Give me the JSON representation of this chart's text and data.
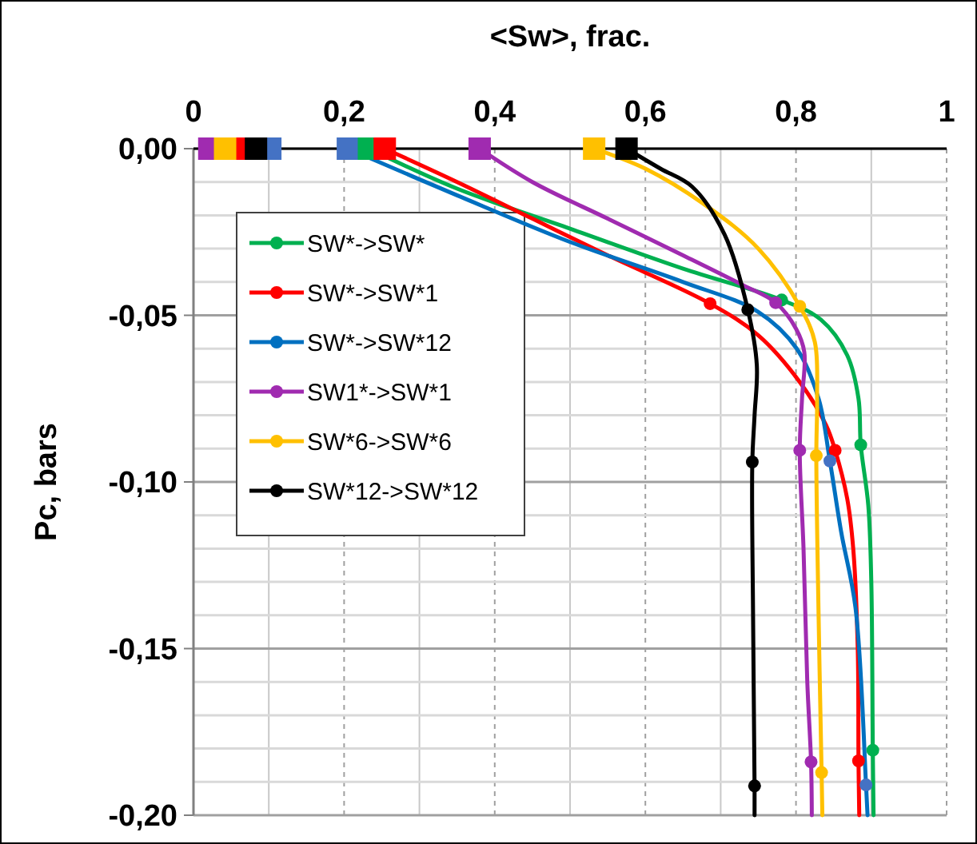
{
  "chart_data": {
    "type": "line",
    "xlabel": "<Sw>, frac.",
    "ylabel": "Pc, bars",
    "xlim": [
      0,
      1
    ],
    "ylim": [
      -0.2,
      0
    ],
    "xticks": [
      0,
      {
        "value": 0.1,
        "label": null
      },
      {
        "value": 0.2,
        "label": "0,2"
      },
      {
        "value": 0.3,
        "label": null
      },
      {
        "value": 0.4,
        "label": "0,4"
      },
      {
        "value": 0.5,
        "label": null
      },
      {
        "value": 0.6,
        "label": "0,6"
      },
      {
        "value": 0.7,
        "label": null
      },
      {
        "value": 0.8,
        "label": "0,8"
      },
      {
        "value": 0.9,
        "label": null
      },
      1
    ],
    "yticks": [
      {
        "value": 0,
        "label": "0,00"
      },
      {
        "value": -0.01,
        "label": null
      },
      {
        "value": -0.02,
        "label": null
      },
      {
        "value": -0.03,
        "label": null
      },
      {
        "value": -0.04,
        "label": null
      },
      {
        "value": -0.05,
        "label": "-0,05"
      },
      {
        "value": -0.06,
        "label": null
      },
      {
        "value": -0.07,
        "label": null
      },
      {
        "value": -0.08,
        "label": null
      },
      {
        "value": -0.09,
        "label": null
      },
      {
        "value": -0.1,
        "label": "-0,10"
      },
      {
        "value": -0.11,
        "label": null
      },
      {
        "value": -0.12,
        "label": null
      },
      {
        "value": -0.13,
        "label": null
      },
      {
        "value": -0.14,
        "label": null
      },
      {
        "value": -0.15,
        "label": "-0,15"
      },
      {
        "value": -0.16,
        "label": null
      },
      {
        "value": -0.17,
        "label": null
      },
      {
        "value": -0.18,
        "label": null
      },
      {
        "value": -0.19,
        "label": null
      },
      {
        "value": -0.2,
        "label": "-0,20"
      }
    ],
    "grid": true,
    "legend": "top left",
    "marker": "none",
    "line_style": "solid",
    "series": [
      {
        "name": "SW*->SW*",
        "color": "#00b050",
        "x": [
          0.233,
          0.35,
          0.5,
          0.65,
          0.781,
          0.833,
          0.868,
          0.883,
          0.886,
          0.896,
          0.9,
          0.902,
          0.903
        ],
        "values": [
          0,
          -0.012,
          -0.024,
          -0.036,
          -0.0454,
          -0.0513,
          -0.062,
          -0.075,
          -0.0889,
          -0.107,
          -0.13,
          -0.1805,
          -0.2
        ]
      },
      {
        "name": "SW*->SW*1",
        "color": "#ff0000",
        "x": [
          0.254,
          0.35,
          0.45,
          0.55,
          0.686,
          0.75,
          0.805,
          0.84,
          0.852,
          0.868,
          0.876,
          0.882,
          0.883,
          0.884
        ],
        "values": [
          0,
          -0.01,
          -0.021,
          -0.032,
          -0.0465,
          -0.056,
          -0.07,
          -0.083,
          -0.0905,
          -0.105,
          -0.12,
          -0.15,
          -0.1837,
          -0.2
        ]
      },
      {
        "name": "SW*->SW*12",
        "color": "#0070c0",
        "x": [
          0.205,
          0.35,
          0.5,
          0.65,
          0.75,
          0.801,
          0.83,
          0.845,
          0.86,
          0.879,
          0.893,
          0.895
        ],
        "values": [
          0,
          -0.014,
          -0.028,
          -0.04,
          -0.049,
          -0.06,
          -0.075,
          -0.0937,
          -0.115,
          -0.1377,
          -0.1909,
          -0.2
        ]
      },
      {
        "name": "SW1*->SW*1",
        "color": "#a02bb0",
        "x": [
          0.38,
          0.45,
          0.55,
          0.65,
          0.73,
          0.773,
          0.8,
          0.811,
          0.808,
          0.805,
          0.81,
          0.815,
          0.82,
          0.821
        ],
        "values": [
          0,
          -0.01,
          -0.021,
          -0.032,
          -0.041,
          -0.0462,
          -0.054,
          -0.061,
          -0.075,
          -0.0905,
          -0.12,
          -0.16,
          -0.184,
          -0.2
        ]
      },
      {
        "name": "SW*6->SW*6",
        "color": "#ffc000",
        "x": [
          0.532,
          0.6,
          0.68,
          0.75,
          0.805,
          0.825,
          0.828,
          0.827,
          0.83,
          0.834,
          0.835
        ],
        "values": [
          0,
          -0.006,
          -0.017,
          -0.03,
          -0.0473,
          -0.058,
          -0.075,
          -0.0921,
          -0.14,
          -0.1872,
          -0.2
        ]
      },
      {
        "name": "SW*12->SW*12",
        "color": "#000000",
        "x": [
          0.575,
          0.62,
          0.662,
          0.705,
          0.736,
          0.748,
          0.745,
          0.742,
          0.743,
          0.745,
          0.745
        ],
        "values": [
          0,
          -0.006,
          -0.0114,
          -0.0257,
          -0.0483,
          -0.065,
          -0.08,
          -0.094,
          -0.14,
          -0.1912,
          -0.2
        ]
      },
      {
        "type": "scatter",
        "marker": "circle",
        "color": "#00b050",
        "x": [
          0.781,
          0.886,
          0.902
        ],
        "values": [
          -0.0454,
          -0.0889,
          -0.1805
        ]
      },
      {
        "type": "scatter",
        "marker": "circle",
        "color": "#ff0000",
        "x": [
          0.686,
          0.852,
          0.883
        ],
        "values": [
          -0.0465,
          -0.0905,
          -0.1837
        ]
      },
      {
        "type": "scatter",
        "marker": "circle",
        "color": "#4472c4",
        "x": [
          0.845,
          0.893
        ],
        "values": [
          -0.0937,
          -0.1909
        ]
      },
      {
        "type": "scatter",
        "marker": "circle",
        "color": "#a02bb0",
        "x": [
          0.773,
          0.805,
          0.82
        ],
        "values": [
          -0.0462,
          -0.0905,
          -0.184
        ]
      },
      {
        "type": "scatter",
        "marker": "circle",
        "color": "#ffc000",
        "x": [
          0.805,
          0.827,
          0.834
        ],
        "values": [
          -0.0473,
          -0.0921,
          -0.1872
        ]
      },
      {
        "type": "scatter",
        "marker": "circle",
        "color": "#000000",
        "x": [
          0.736,
          0.742,
          0.745
        ],
        "values": [
          -0.0483,
          -0.094,
          -0.1912
        ]
      },
      {
        "type": "scatter",
        "marker": "square",
        "color": "#4472c4",
        "x": [
          0.102,
          0.205
        ],
        "values": [
          0,
          0
        ]
      },
      {
        "type": "scatter",
        "marker": "square",
        "color": "#00b050",
        "x": [
          0.233
        ],
        "values": [
          0
        ]
      },
      {
        "type": "scatter",
        "marker": "square",
        "color": "#ff0000",
        "x": [
          0.062,
          0.254
        ],
        "values": [
          0,
          0
        ]
      },
      {
        "type": "scatter",
        "marker": "square",
        "color": "#a02bb0",
        "x": [
          0.021,
          0.38
        ],
        "values": [
          0,
          0
        ]
      },
      {
        "type": "scatter",
        "marker": "square",
        "color": "#ffc000",
        "x": [
          0.042,
          0.532
        ],
        "values": [
          0,
          0
        ]
      },
      {
        "type": "scatter",
        "marker": "square",
        "color": "#000000",
        "x": [
          0.083,
          0.575
        ],
        "values": [
          0,
          0
        ]
      }
    ]
  }
}
